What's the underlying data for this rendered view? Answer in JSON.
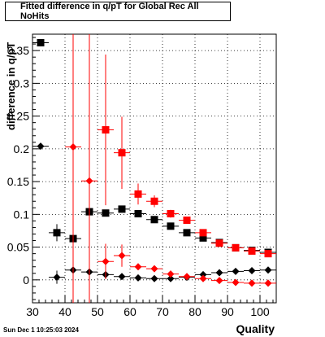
{
  "chart_data": {
    "type": "scatter",
    "title": "Fitted difference in q/pT for Global Rec All NoHits",
    "xlabel": "Quality",
    "ylabel": "difference in q/pT",
    "xlim": [
      30,
      105
    ],
    "ylim": [
      -0.035,
      0.375
    ],
    "xticks": [
      "30",
      "40",
      "50",
      "60",
      "70",
      "80",
      "90",
      "100"
    ],
    "yticks": [
      "0",
      "0.05",
      "0.1",
      "0.15",
      "0.2",
      "0.25",
      "0.3",
      "0.35"
    ],
    "grid": true,
    "series": [
      {
        "marker": "square",
        "color": "#000000",
        "x": [
          32.5,
          37.5,
          42.5,
          47.5,
          52.5,
          57.5,
          62.5,
          67.5,
          72.5,
          77.5,
          82.5,
          87.5,
          92.5,
          97.5,
          102.5
        ],
        "y": [
          0.362,
          0.072,
          0.063,
          0.104,
          0.102,
          0.108,
          0.101,
          0.092,
          0.082,
          0.072,
          0.064,
          0.057,
          0.049,
          0.045,
          0.042
        ],
        "yerr": [
          0,
          0.013,
          0.013,
          0,
          0,
          0,
          0,
          0,
          0,
          0,
          0,
          0,
          0,
          0,
          0
        ]
      },
      {
        "marker": "square",
        "color": "#ff0000",
        "x": [
          52.5,
          57.5,
          62.5,
          67.5,
          72.5,
          77.5,
          82.5,
          87.5,
          92.5,
          97.5,
          102.5
        ],
        "y": [
          0.229,
          0.194,
          0.131,
          0.12,
          0.101,
          0.091,
          0.072,
          0.056,
          0.049,
          0.044,
          0.04
        ],
        "yerr": [
          0.115,
          0.055,
          0.016,
          0.009,
          0.006,
          0.004,
          0.003,
          0.003,
          0.002,
          0.002,
          0.002
        ]
      },
      {
        "marker": "diamond",
        "color": "#000000",
        "x": [
          32.5,
          37.5,
          42.5,
          47.5,
          52.5,
          57.5,
          62.5,
          67.5,
          72.5,
          77.5,
          82.5,
          87.5,
          92.5,
          97.5,
          102.5
        ],
        "y": [
          0.204,
          0.004,
          0.015,
          0.012,
          0.008,
          0.005,
          0.003,
          0.002,
          0.002,
          0.004,
          0.008,
          0.011,
          0.013,
          0.014,
          0.015
        ],
        "yerr": [
          0,
          0.01,
          0.012,
          0,
          0,
          0,
          0,
          0,
          0,
          0,
          0,
          0,
          0,
          0,
          0
        ]
      },
      {
        "marker": "diamond",
        "color": "#ff0000",
        "x": [
          42.5,
          47.5,
          52.5,
          57.5,
          62.5,
          67.5,
          72.5,
          77.5,
          82.5,
          87.5,
          92.5,
          97.5,
          102.5
        ],
        "y": [
          0.203,
          0.151,
          0.028,
          0.037,
          0.02,
          0.017,
          0.009,
          0.005,
          0.002,
          -0.001,
          -0.004,
          -0.005,
          -0.005
        ],
        "yerr": [
          0.37,
          0.27,
          0.027,
          0.017,
          0.005,
          0.004,
          0.003,
          0.002,
          0.002,
          0.002,
          0.001,
          0.001,
          0.001
        ]
      }
    ]
  },
  "footer": {
    "timestamp": "Sun Dec  1 10:25:03 2024"
  }
}
